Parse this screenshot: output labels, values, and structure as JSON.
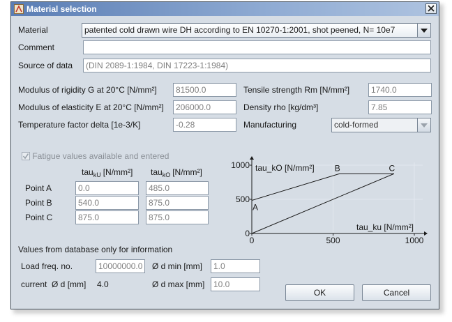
{
  "window": {
    "title": "Material selection"
  },
  "form": {
    "material": {
      "label": "Material",
      "value": "patented cold drawn wire DH according to EN 10270-1:2001, shot peened, N= 10e7"
    },
    "comment": {
      "label": "Comment"
    },
    "source": {
      "label": "Source of data",
      "value": "(DIN 2089-1:1984, DIN 17223-1:1984)"
    },
    "properties_left": [
      {
        "label": "Modulus of rigidity G at 20°C [N/mm²]",
        "value": "81500.0"
      },
      {
        "label": "Modulus of elasticity E at 20°C [N/mm²]",
        "value": "206000.0"
      },
      {
        "label": "Temperature factor delta [1e-3/K]",
        "value": "-0.28"
      }
    ],
    "properties_right": [
      {
        "label": "Tensile strength Rm [N/mm²]",
        "value": "1740.0"
      },
      {
        "label": "Density rho [kg/dm³]",
        "value": "7.85"
      },
      {
        "label": "Manufacturing",
        "value": "cold-formed"
      }
    ]
  },
  "fatigue": {
    "checkbox": "Fatigue values available and entered",
    "columns": [
      {
        "base": "tau",
        "sub": "kU",
        "unit": "[N/mm²]"
      },
      {
        "base": "tau",
        "sub": "kO",
        "unit": "[N/mm²]"
      }
    ],
    "points": [
      {
        "label": "Point A",
        "tau_kU": "0.0",
        "tau_kO": "485.0"
      },
      {
        "label": "Point B",
        "tau_kU": "540.0",
        "tau_kO": "875.0"
      },
      {
        "label": "Point C",
        "tau_kU": "875.0",
        "tau_kO": "875.0"
      }
    ]
  },
  "chart": {
    "x_label": "tau_ku [N/mm²]",
    "y_label": "tau_kO [N/mm²]",
    "xlim": [
      0,
      1000
    ],
    "ylim": [
      0,
      1000
    ],
    "xticks": [
      0,
      500,
      1000
    ],
    "yticks": [
      0,
      500,
      1000
    ],
    "point_labels": [
      "A",
      "B",
      "C"
    ]
  },
  "info": {
    "heading": "Values from database only for information",
    "load_freq": {
      "label": "Load freq. no.",
      "value": "10000000.0"
    },
    "d_min": {
      "label": "Ø d min [mm]",
      "value": "1.0"
    },
    "current_d": {
      "label": "current  Ø d [mm]",
      "value": "4.0"
    },
    "d_max": {
      "label": "Ø d max [mm]",
      "value": "10.0"
    }
  },
  "buttons": {
    "ok": "OK",
    "cancel": "Cancel"
  }
}
